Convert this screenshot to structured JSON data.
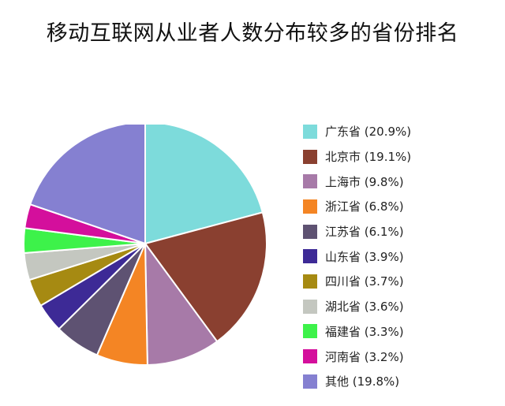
{
  "chart_data": {
    "type": "pie",
    "title": "移动互联网从业者人数分布较多的省份排名",
    "legend_position": "right",
    "slices": [
      {
        "label": "广东省",
        "value": 20.9,
        "display": "广东省 (20.9%)",
        "color": "#7ddbdb"
      },
      {
        "label": "北京市",
        "value": 19.1,
        "display": "北京市 (19.1%)",
        "color": "#8a4030"
      },
      {
        "label": "上海市",
        "value": 9.8,
        "display": "上海市 (9.8%)",
        "color": "#a77aa8"
      },
      {
        "label": "浙江省",
        "value": 6.8,
        "display": "浙江省 (6.8%)",
        "color": "#f48524"
      },
      {
        "label": "江苏省",
        "value": 6.1,
        "display": "江苏省 (6.1%)",
        "color": "#5e5272"
      },
      {
        "label": "山东省",
        "value": 3.9,
        "display": "山东省 (3.9%)",
        "color": "#3d2a96"
      },
      {
        "label": "四川省",
        "value": 3.7,
        "display": "四川省 (3.7%)",
        "color": "#a68a12"
      },
      {
        "label": "湖北省",
        "value": 3.6,
        "display": "湖北省 (3.6%)",
        "color": "#c4c7c0"
      },
      {
        "label": "福建省",
        "value": 3.3,
        "display": "福建省 (3.3%)",
        "color": "#3df24a"
      },
      {
        "label": "河南省",
        "value": 3.2,
        "display": "河南省 (3.2%)",
        "color": "#d40f9c"
      },
      {
        "label": "其他",
        "value": 19.8,
        "display": "其他 (19.8%)",
        "color": "#8580d1"
      }
    ]
  }
}
